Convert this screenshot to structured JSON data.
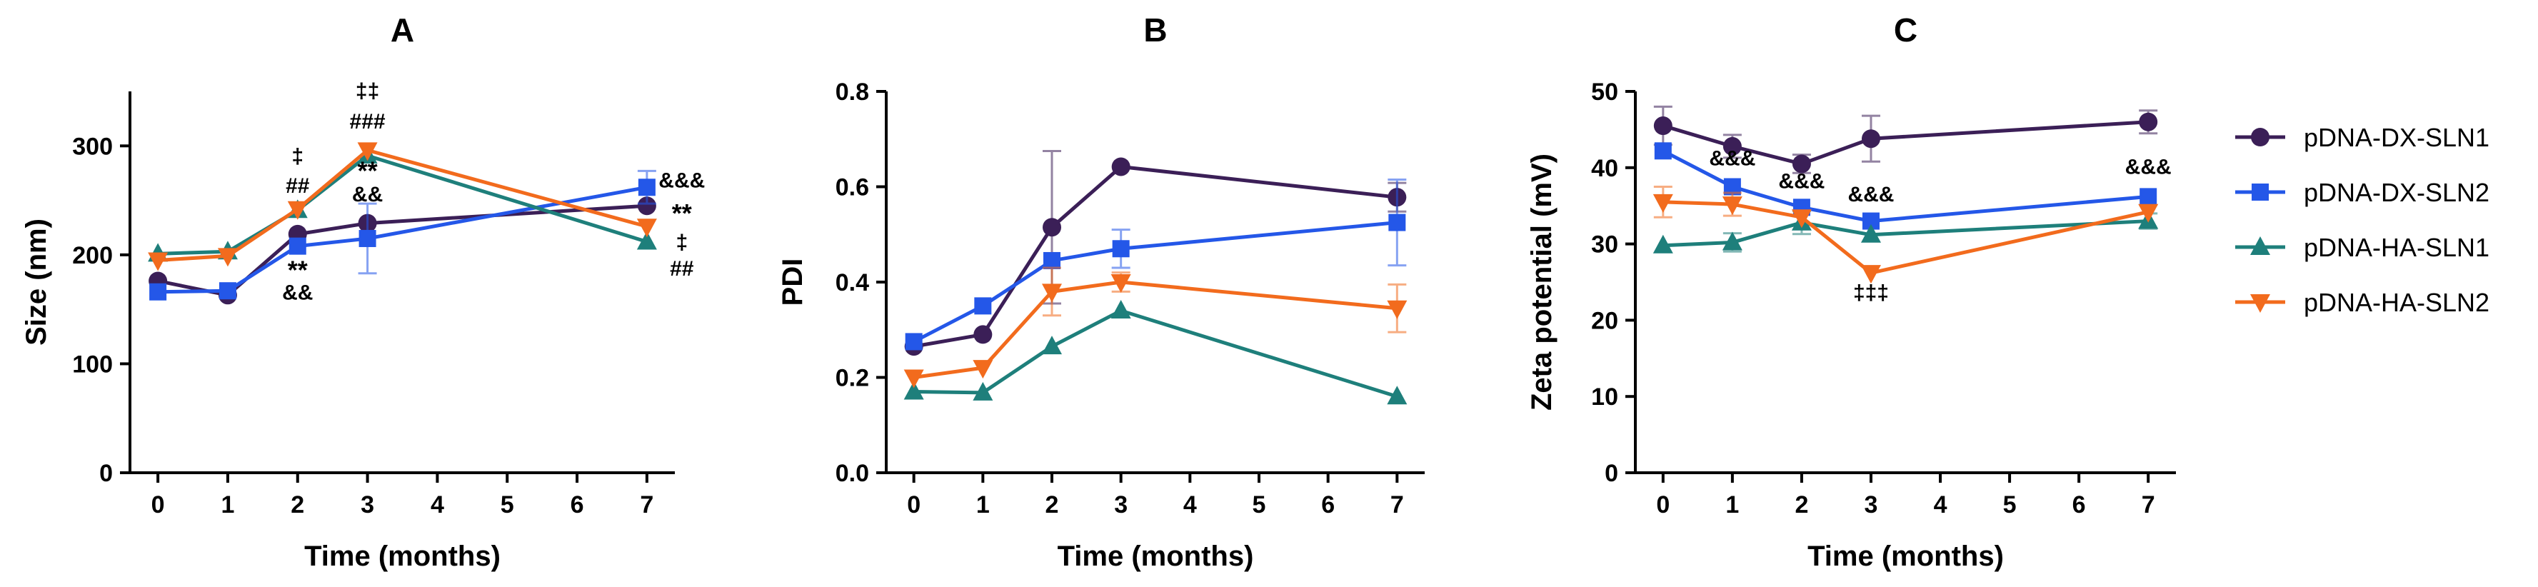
{
  "colors": {
    "pDNA-DX-SLN1": "#3b1f57",
    "pDNA-DX-SLN2": "#2457e8",
    "pDNA-HA-SLN1": "#1e7f7b",
    "pDNA-HA-SLN2": "#f26b1d",
    "axis": "#000000"
  },
  "legend": [
    {
      "name": "pDNA-DX-SLN1",
      "marker": "circle"
    },
    {
      "name": "pDNA-DX-SLN2",
      "marker": "square"
    },
    {
      "name": "pDNA-HA-SLN1",
      "marker": "triangle-up"
    },
    {
      "name": "pDNA-HA-SLN2",
      "marker": "triangle-down"
    }
  ],
  "chart_data": [
    {
      "type": "line",
      "title": "A",
      "xlabel": "Time (months)",
      "ylabel": "Size (nm)",
      "xlim": [
        -0.4,
        7.4
      ],
      "ylim": [
        0,
        350
      ],
      "xticks": [
        0,
        1,
        2,
        3,
        4,
        5,
        6,
        7
      ],
      "yticks": [
        0,
        100,
        200,
        300
      ],
      "x": [
        0,
        1,
        2,
        3,
        7
      ],
      "series": [
        {
          "name": "pDNA-DX-SLN1",
          "values": [
            176,
            163,
            219,
            229,
            245
          ],
          "errors": [
            0,
            0,
            0,
            0,
            0
          ]
        },
        {
          "name": "pDNA-DX-SLN2",
          "values": [
            166,
            167,
            208,
            215,
            262
          ],
          "errors": [
            0,
            0,
            0,
            32,
            15
          ]
        },
        {
          "name": "pDNA-HA-SLN1",
          "values": [
            201,
            203,
            241,
            291,
            212
          ],
          "errors": [
            0,
            0,
            0,
            0,
            0
          ]
        },
        {
          "name": "pDNA-HA-SLN2",
          "values": [
            195,
            199,
            242,
            296,
            226
          ],
          "errors": [
            0,
            0,
            0,
            0,
            0
          ]
        }
      ],
      "annotations": [
        {
          "x": 2,
          "y": 284,
          "text": "‡",
          "size": "small"
        },
        {
          "x": 2,
          "y": 257,
          "text": "##",
          "size": "small"
        },
        {
          "x": 2,
          "y": 178,
          "text": "**",
          "size": "big"
        },
        {
          "x": 2,
          "y": 159,
          "text": "&&",
          "size": "small"
        },
        {
          "x": 3,
          "y": 344,
          "text": "‡‡",
          "size": "small"
        },
        {
          "x": 3,
          "y": 316,
          "text": "###",
          "size": "small"
        },
        {
          "x": 3,
          "y": 269,
          "text": "**",
          "size": "big"
        },
        {
          "x": 3,
          "y": 249,
          "text": "&&",
          "size": "small"
        },
        {
          "x": 7.5,
          "y": 262,
          "text": "&&&",
          "size": "small"
        },
        {
          "x": 7.5,
          "y": 230,
          "text": "**",
          "size": "big"
        },
        {
          "x": 7.5,
          "y": 205,
          "text": "‡",
          "size": "small"
        },
        {
          "x": 7.5,
          "y": 181,
          "text": "##",
          "size": "small"
        }
      ]
    },
    {
      "type": "line",
      "title": "B",
      "xlabel": "Time (months)",
      "ylabel": "PDI",
      "xlim": [
        -0.4,
        7.4
      ],
      "ylim": [
        0,
        0.8
      ],
      "xticks": [
        0,
        1,
        2,
        3,
        4,
        5,
        6,
        7
      ],
      "yticks": [
        0.0,
        0.2,
        0.4,
        0.6,
        0.8
      ],
      "ytick_labels": [
        "0.0",
        "0.2",
        "0.4",
        "0.6",
        "0.8"
      ],
      "x": [
        0,
        1,
        2,
        3,
        7
      ],
      "series": [
        {
          "name": "pDNA-DX-SLN1",
          "values": [
            0.265,
            0.29,
            0.515,
            0.642,
            0.578
          ],
          "errors": [
            0,
            0,
            0.16,
            0,
            0.03
          ]
        },
        {
          "name": "pDNA-DX-SLN2",
          "values": [
            0.275,
            0.35,
            0.445,
            0.47,
            0.525
          ],
          "errors": [
            0,
            0,
            0,
            0.04,
            0.09
          ]
        },
        {
          "name": "pDNA-HA-SLN1",
          "values": [
            0.17,
            0.168,
            0.265,
            0.34,
            0.16
          ],
          "errors": [
            0,
            0,
            0,
            0,
            0
          ]
        },
        {
          "name": "pDNA-HA-SLN2",
          "values": [
            0.2,
            0.22,
            0.38,
            0.4,
            0.345
          ],
          "errors": [
            0,
            0,
            0.05,
            0.02,
            0.05
          ]
        }
      ],
      "annotations": []
    },
    {
      "type": "line",
      "title": "C",
      "xlabel": "Time (months)",
      "ylabel": "Zeta potential (mV)",
      "xlim": [
        -0.4,
        7.4
      ],
      "ylim": [
        0,
        50
      ],
      "xticks": [
        0,
        1,
        2,
        3,
        4,
        5,
        6,
        7
      ],
      "yticks": [
        0,
        10,
        20,
        30,
        40,
        50
      ],
      "x": [
        0,
        1,
        2,
        3,
        7
      ],
      "series": [
        {
          "name": "pDNA-DX-SLN1",
          "values": [
            45.5,
            42.8,
            40.5,
            43.8,
            46.0
          ],
          "errors": [
            2.5,
            1.5,
            1.2,
            3.0,
            1.5
          ]
        },
        {
          "name": "pDNA-DX-SLN2",
          "values": [
            42.2,
            37.5,
            34.8,
            33.0,
            36.2
          ],
          "errors": [
            0,
            0,
            0,
            0,
            0
          ]
        },
        {
          "name": "pDNA-HA-SLN1",
          "values": [
            29.8,
            30.2,
            32.8,
            31.2,
            33.0
          ],
          "errors": [
            0,
            1.2,
            1.5,
            0,
            1.0
          ]
        },
        {
          "name": "pDNA-HA-SLN2",
          "values": [
            35.5,
            35.2,
            33.5,
            26.2,
            34.2
          ],
          "errors": [
            2.0,
            1.5,
            0,
            0,
            0
          ]
        }
      ],
      "annotations": [
        {
          "x": 1,
          "y": 40.3,
          "text": "&&&",
          "size": "small"
        },
        {
          "x": 2,
          "y": 37.3,
          "text": "&&&",
          "size": "small"
        },
        {
          "x": 3,
          "y": 35.6,
          "text": "&&&",
          "size": "small"
        },
        {
          "x": 3,
          "y": 22.7,
          "text": "‡‡‡",
          "size": "small"
        },
        {
          "x": 7,
          "y": 39.2,
          "text": "&&&",
          "size": "small"
        }
      ]
    }
  ]
}
